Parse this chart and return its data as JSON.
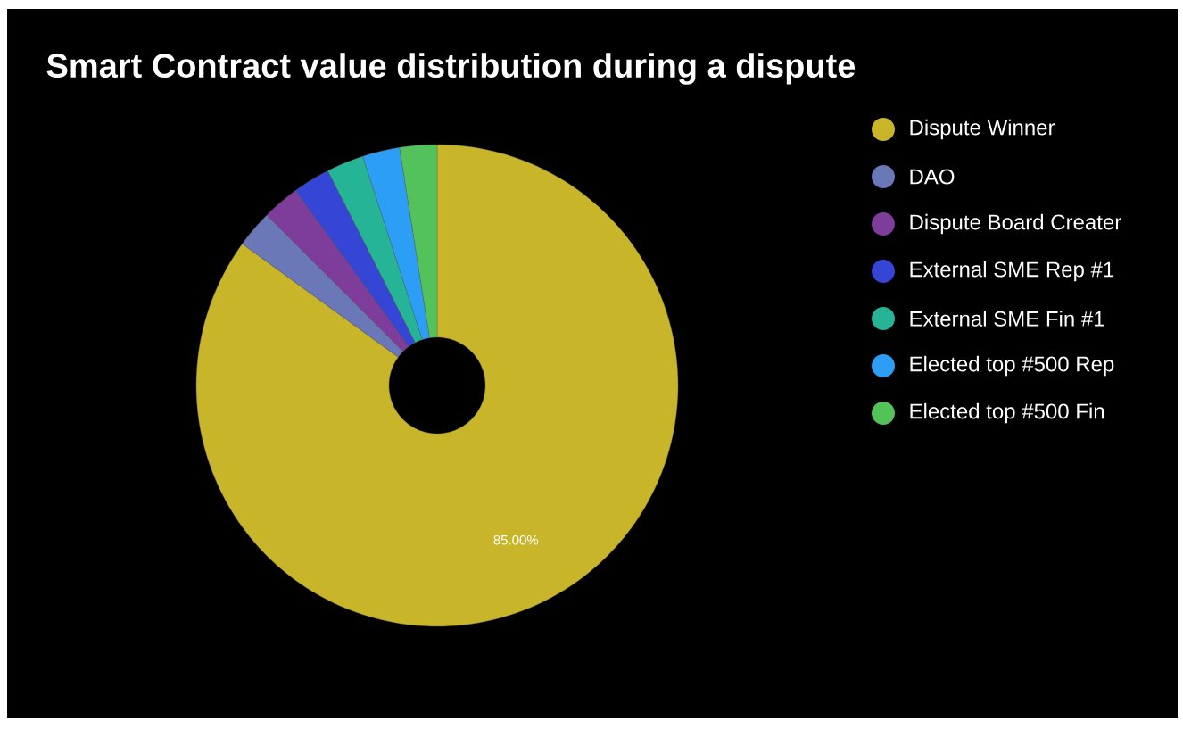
{
  "chart_data": {
    "type": "donut",
    "title": "Smart Contract value distribution during a dispute",
    "categories": [
      "Dispute Winner",
      "DAO",
      "Dispute Board Creater",
      "External SME Rep #1",
      "External SME Fin #1",
      "Elected top #500 Rep",
      "Elected top #500 Fin"
    ],
    "values": [
      85,
      2.5,
      2.5,
      2.5,
      2.5,
      2.5,
      2.5
    ],
    "colors": [
      "#c9b52a",
      "#6b78b8",
      "#7e3d9a",
      "#3545d6",
      "#26b496",
      "#2c9ef5",
      "#54c25a"
    ],
    "value_labels": [
      "85.00%",
      null,
      null,
      null,
      null,
      null,
      null
    ],
    "legend": "top right"
  }
}
